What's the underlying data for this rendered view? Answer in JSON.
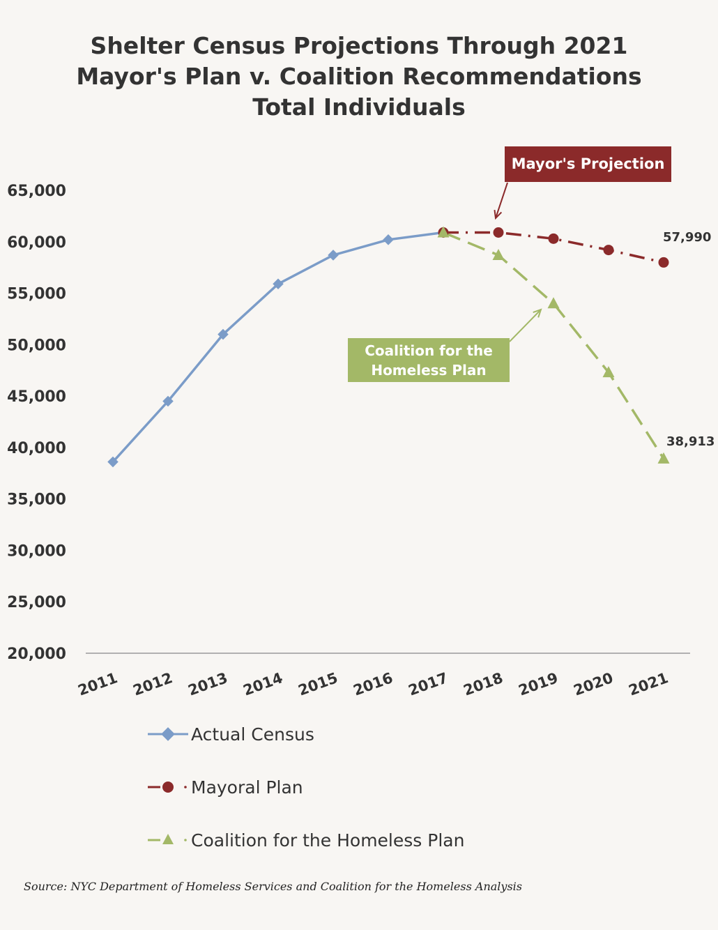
{
  "title_lines": [
    "Shelter Census Projections Through 2021",
    "Mayor's Plan v. Coalition Recommendations",
    "Total Individuals"
  ],
  "source": "Source:  NYC Department of Homeless Services and Coalition for the Homeless Analysis",
  "callouts": {
    "mayor": "Mayor's Projection",
    "coalition_line1": "Coalition for the",
    "coalition_line2": "Homeless Plan"
  },
  "legend": {
    "actual": "Actual Census",
    "mayoral": "Mayoral Plan",
    "coalition": "Coalition for the Homeless Plan"
  },
  "colors": {
    "actual": "#7b9cc8",
    "mayoral": "#8b2a2a",
    "coalition": "#a3b867",
    "axis": "#999999"
  },
  "chart_data": {
    "type": "line",
    "title": "Shelter Census Projections Through 2021 Mayor's Plan v. Coalition Recommendations Total Individuals",
    "categories": [
      "2011",
      "2012",
      "2013",
      "2014",
      "2015",
      "2016",
      "2017",
      "2018",
      "2019",
      "2020",
      "2021"
    ],
    "ylim": [
      20000,
      65000
    ],
    "yticks": [
      "20,000",
      "25,000",
      "30,000",
      "35,000",
      "40,000",
      "45,000",
      "50,000",
      "55,000",
      "60,000",
      "65,000"
    ],
    "grid": false,
    "legend_position": "bottom",
    "series": [
      {
        "name": "Actual Census",
        "values": [
          38600,
          44500,
          51000,
          55900,
          58700,
          60200,
          60900,
          null,
          null,
          null,
          null
        ]
      },
      {
        "name": "Mayoral Plan",
        "values": [
          null,
          null,
          null,
          null,
          null,
          null,
          60900,
          60900,
          60300,
          59200,
          57990
        ]
      },
      {
        "name": "Coalition for the Homeless Plan",
        "values": [
          null,
          null,
          null,
          null,
          null,
          null,
          60900,
          58700,
          54000,
          47300,
          38913
        ]
      }
    ],
    "annotations": [
      {
        "label": "57,990",
        "series": "Mayoral Plan",
        "category": "2021"
      },
      {
        "label": "38,913",
        "series": "Coalition for the Homeless Plan",
        "category": "2021"
      }
    ]
  }
}
